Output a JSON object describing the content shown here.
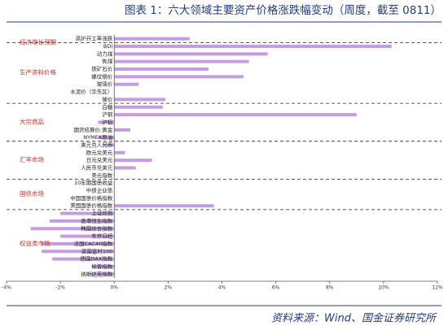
{
  "chart_data": {
    "type": "hbar",
    "title": "图表 1：六大领域主要资产价格涨跌幅变动（周度，截至 0811）",
    "source": "资料来源：Wind、国金证券研究所",
    "color": "#c49ce0",
    "groups": [
      {
        "name": "经济增长预期",
        "categories": [
          "高炉开工率涨跌"
        ],
        "values": [
          2.8
        ]
      },
      {
        "name": "生产资料价格",
        "categories": [
          "BDI",
          "动力煤",
          "焦煤",
          "铁矿石价",
          "螺纹钢价",
          "玻璃价",
          "水泥价（华东区）",
          "猪价"
        ],
        "values": [
          10.3,
          5.7,
          5.0,
          3.5,
          4.8,
          0.9,
          0,
          1.9
        ]
      },
      {
        "name": "大宗商品",
        "categories": [
          "白糖",
          "沪铜",
          "沪铝",
          "期货结算价:黄金",
          "NYMEX原油"
        ],
        "values": [
          1.8,
          9.0,
          -0.6,
          0.6,
          -0.6
        ]
      },
      {
        "name": "汇率市场",
        "categories": [
          "美元兑人民币",
          "欧元兑美元",
          "日元兑美元",
          "人民币兑美元",
          "美元指数"
        ],
        "values": [
          -0.3,
          0.4,
          1.4,
          0.8,
          0
        ]
      },
      {
        "name": "国债市场",
        "categories": [
          "10年期国债收益",
          "中债企业债",
          "中国国债价格指数",
          "美国国债价格指数"
        ],
        "values": [
          0,
          0,
          0,
          3.7
        ]
      },
      {
        "name": "权益类市场",
        "categories": [
          "上证综指",
          "香港恒生指数",
          "韩国综合指数",
          "东京日经",
          "法国CAC40指数",
          "英国富时100",
          "德国DAX指数",
          "标普指数",
          "纳斯达克指数"
        ],
        "values": [
          -2.0,
          -2.4,
          -3.1,
          -2.0,
          -2.7,
          -2.7,
          -2.3,
          -0.8,
          -0.9
        ]
      }
    ],
    "xlim": [
      -4,
      12
    ],
    "xticks": [
      {
        "value": -4,
        "label": "-4%"
      },
      {
        "value": -2,
        "label": "-2%"
      },
      {
        "value": 0,
        "label": "0%"
      },
      {
        "value": 2,
        "label": "2%"
      },
      {
        "value": 4,
        "label": "4%"
      },
      {
        "value": 6,
        "label": "6%"
      },
      {
        "value": 8,
        "label": "8%"
      },
      {
        "value": 10,
        "label": "10%"
      },
      {
        "value": 12,
        "label": "12%"
      }
    ]
  }
}
